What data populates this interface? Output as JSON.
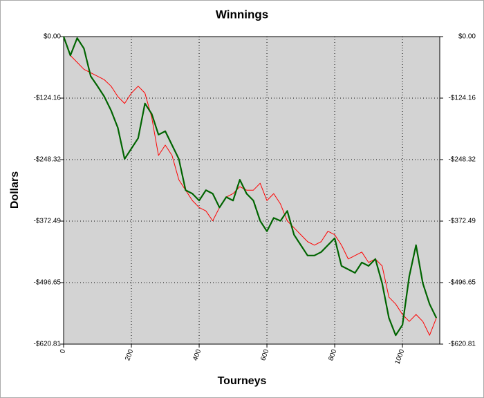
{
  "chart_data": {
    "type": "line",
    "title": "Winnings",
    "x_label": "Tourneys",
    "y_label": "Dollars",
    "x": [
      0,
      20,
      40,
      60,
      80,
      100,
      120,
      140,
      160,
      180,
      200,
      220,
      240,
      260,
      280,
      300,
      320,
      340,
      360,
      380,
      400,
      420,
      440,
      460,
      480,
      500,
      520,
      540,
      560,
      580,
      600,
      620,
      640,
      660,
      680,
      700,
      720,
      740,
      760,
      780,
      800,
      820,
      840,
      860,
      880,
      900,
      920,
      940,
      960,
      980,
      1000,
      1020,
      1040,
      1060,
      1080,
      1100
    ],
    "series": [
      {
        "name": "Red",
        "color": "#ff0000",
        "width": 1,
        "values": [
          0,
          -38,
          -52,
          -66,
          -73,
          -80,
          -87,
          -100,
          -121,
          -135,
          -114,
          -100,
          -114,
          -163,
          -240,
          -219,
          -240,
          -289,
          -310,
          -331,
          -345,
          -352,
          -372,
          -345,
          -324,
          -317,
          -303,
          -310,
          -310,
          -296,
          -331,
          -317,
          -338,
          -372,
          -386,
          -400,
          -414,
          -421,
          -414,
          -393,
          -400,
          -421,
          -449,
          -442,
          -435,
          -456,
          -449,
          -463,
          -526,
          -540,
          -561,
          -575,
          -561,
          -575,
          -603,
          -568
        ]
      },
      {
        "name": "Green",
        "color": "#006400",
        "width": 2.2,
        "values": [
          0,
          -38,
          -3,
          -24,
          -80,
          -100,
          -121,
          -149,
          -184,
          -247,
          -226,
          -205,
          -135,
          -156,
          -198,
          -191,
          -219,
          -247,
          -310,
          -317,
          -331,
          -310,
          -317,
          -345,
          -324,
          -331,
          -289,
          -317,
          -331,
          -372,
          -393,
          -366,
          -372,
          -352,
          -400,
          -421,
          -442,
          -442,
          -435,
          -421,
          -407,
          -463,
          -470,
          -477,
          -456,
          -463,
          -449,
          -498,
          -568,
          -603,
          -582,
          -484,
          -421,
          -498,
          -540,
          -568
        ]
      }
    ],
    "xlim": [
      0,
      1110
    ],
    "ylim": [
      -620.81,
      0
    ],
    "xticks": [
      0,
      200,
      400,
      600,
      800,
      1000
    ],
    "yticks": [
      {
        "value": 0,
        "label": "$0.00"
      },
      {
        "value": -124.16,
        "label": "-$124.16"
      },
      {
        "value": -248.32,
        "label": "-$248.32"
      },
      {
        "value": -372.49,
        "label": "-$372.49"
      },
      {
        "value": -496.65,
        "label": "-$496.65"
      },
      {
        "value": -620.81,
        "label": "-$620.81"
      }
    ],
    "grid": true
  }
}
